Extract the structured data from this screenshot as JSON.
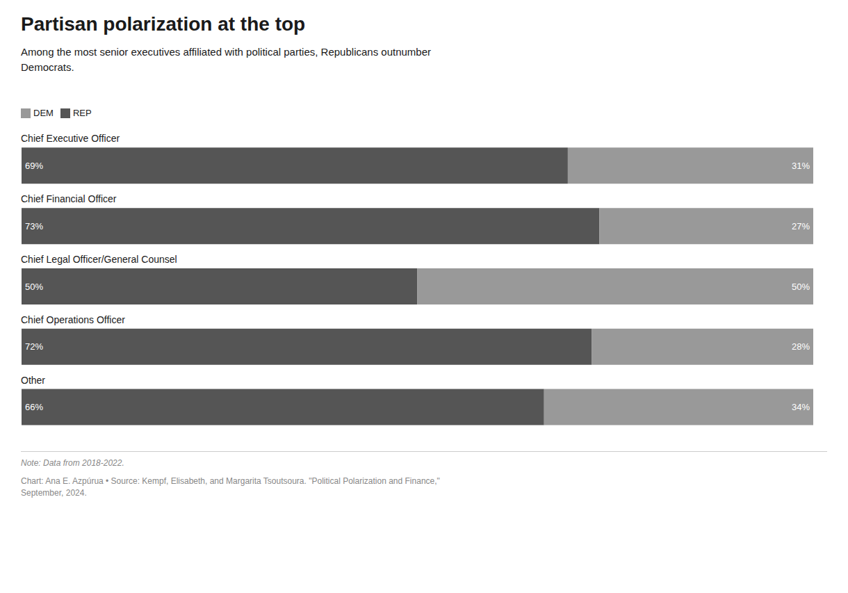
{
  "chart_data": {
    "type": "bar",
    "orientation": "horizontal",
    "stacked": true,
    "title": "Partisan polarization at the top",
    "subtitle": "Among the most senior executives affiliated with political parties, Republicans outnumber\nDemocrats.",
    "categories": [
      "Chief Executive Officer",
      "Chief Financial Officer",
      "Chief Legal Officer/General Counsel",
      "Chief Operations Officer",
      "Other"
    ],
    "series": [
      {
        "name": "REP",
        "color": "#555555",
        "values": [
          69,
          73,
          50,
          72,
          66
        ],
        "value_labels": [
          "69%",
          "73%",
          "50%",
          "72%",
          "66%"
        ]
      },
      {
        "name": "DEM",
        "color": "#999999",
        "values": [
          31,
          27,
          50,
          28,
          34
        ],
        "value_labels": [
          "31%",
          "27%",
          "50%",
          "28%",
          "34%"
        ]
      }
    ],
    "xlim": [
      0,
      100
    ],
    "data_labels": true,
    "tick_labels": "y",
    "legend": "upper left",
    "grid": false,
    "annotations": [
      "Note: Data from 2018-2022.",
      "Chart: Ana E. Azpúrua • Source: Kempf, Elisabeth, and Margarita Tsoutsoura. \"Political Polarization and Finance,\"\nSeptember, 2024."
    ]
  }
}
